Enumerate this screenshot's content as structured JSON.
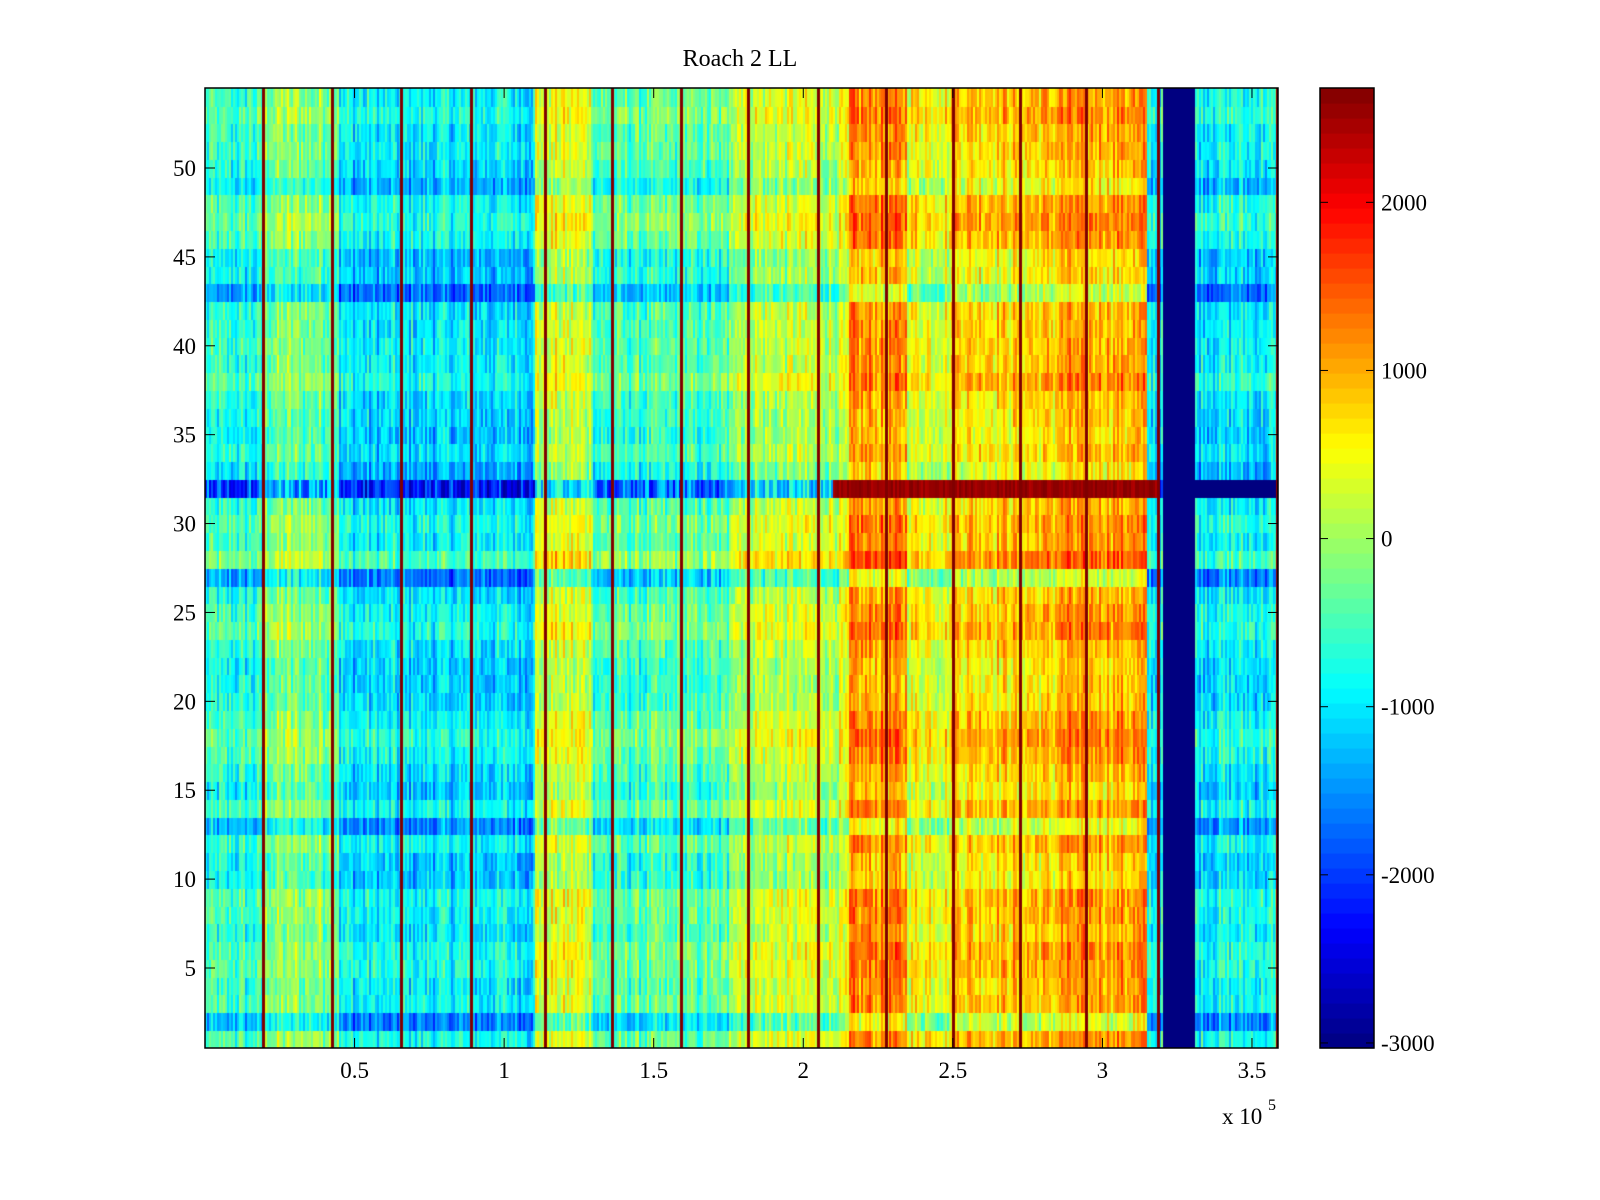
{
  "chart_data": {
    "type": "heatmap",
    "title": "Roach 2 LL",
    "xlabel": "",
    "ylabel": "",
    "x_multiplier_label": "x 10",
    "x_multiplier_exponent": "5",
    "xlim": [
      0,
      358700
    ],
    "ylim": [
      0.5,
      54.5
    ],
    "x_ticks": [
      {
        "value": 0.5,
        "label": "0.5"
      },
      {
        "value": 1,
        "label": "1"
      },
      {
        "value": 1.5,
        "label": "1.5"
      },
      {
        "value": 2,
        "label": "2"
      },
      {
        "value": 2.5,
        "label": "2.5"
      },
      {
        "value": 3,
        "label": "3"
      },
      {
        "value": 3.5,
        "label": "3.5"
      }
    ],
    "y_ticks": [
      {
        "value": 5,
        "label": "5"
      },
      {
        "value": 10,
        "label": "10"
      },
      {
        "value": 15,
        "label": "15"
      },
      {
        "value": 20,
        "label": "20"
      },
      {
        "value": 25,
        "label": "25"
      },
      {
        "value": 30,
        "label": "30"
      },
      {
        "value": 35,
        "label": "35"
      },
      {
        "value": 40,
        "label": "40"
      },
      {
        "value": 45,
        "label": "45"
      },
      {
        "value": 50,
        "label": "50"
      }
    ],
    "rows": 54,
    "colormap": "jet",
    "clim": [
      -3030,
      2680
    ],
    "colorbar": {
      "ticks": [
        {
          "value": 2000,
          "label": "2000"
        },
        {
          "value": 1000,
          "label": "1000"
        },
        {
          "value": 0,
          "label": "0"
        },
        {
          "value": -1000,
          "label": "-1000"
        },
        {
          "value": -2000,
          "label": "-2000"
        },
        {
          "value": -3000,
          "label": "-3000"
        }
      ]
    },
    "column_profile": [
      {
        "x_from": 0.0,
        "x_to": 0.2,
        "base": -700
      },
      {
        "x_from": 0.2,
        "x_to": 0.45,
        "base": -200
      },
      {
        "x_from": 0.45,
        "x_to": 1.1,
        "base": -1000
      },
      {
        "x_from": 1.1,
        "x_to": 1.3,
        "base": 300
      },
      {
        "x_from": 1.3,
        "x_to": 1.75,
        "base": -500
      },
      {
        "x_from": 1.75,
        "x_to": 2.15,
        "base": 200
      },
      {
        "x_from": 2.15,
        "x_to": 2.35,
        "base": 1100
      },
      {
        "x_from": 2.35,
        "x_to": 2.5,
        "base": 500
      },
      {
        "x_from": 2.5,
        "x_to": 2.85,
        "base": 800
      },
      {
        "x_from": 2.85,
        "x_to": 3.15,
        "base": 1000
      },
      {
        "x_from": 3.15,
        "x_to": 3.2,
        "base": -900
      },
      {
        "x_from": 3.2,
        "x_to": 3.31,
        "base": -3030
      },
      {
        "x_from": 3.31,
        "x_to": 3.587,
        "base": -900
      }
    ],
    "row_offsets": [
      {
        "row": 2,
        "offset": -500
      },
      {
        "row": 9,
        "offset": 400
      },
      {
        "row": 12,
        "offset": 300
      },
      {
        "row": 13,
        "offset": -400
      },
      {
        "row": 18,
        "offset": 300
      },
      {
        "row": 27,
        "offset": -600
      },
      {
        "row": 28,
        "offset": 300
      },
      {
        "row": 32,
        "offset": -1500
      },
      {
        "row": 33,
        "offset": -300
      },
      {
        "row": 43,
        "offset": -700
      },
      {
        "row": 44,
        "offset": -400
      },
      {
        "row": 45,
        "offset": -300
      },
      {
        "row": 47,
        "offset": 300
      },
      {
        "row": 48,
        "offset": 400
      },
      {
        "row": 49,
        "offset": -300
      }
    ],
    "row32_hot_from": 2.1,
    "stripes": [
      0.195,
      0.425,
      0.655,
      0.89,
      1.135,
      1.36,
      1.59,
      1.815,
      2.05,
      2.275,
      2.5,
      2.725,
      2.945,
      3.185,
      3.585
    ],
    "stripe_value": 2680
  }
}
